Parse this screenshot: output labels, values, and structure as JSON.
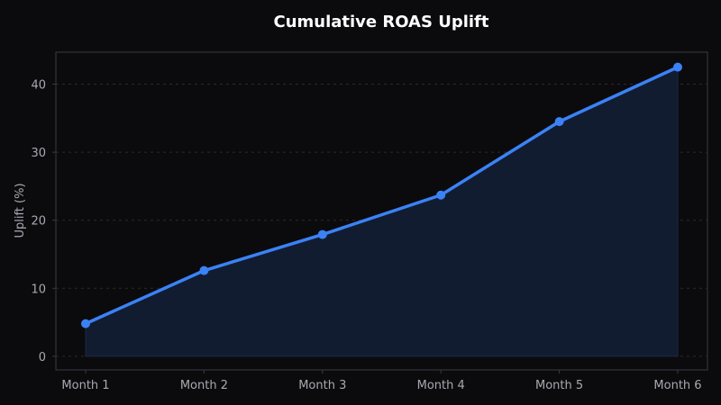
{
  "colors": {
    "background": "#0b0b0d",
    "plot_border": "#3a3a42",
    "grid": "#2a2a31",
    "line": "#3b82f6",
    "area_fill": "#111c31",
    "text": "#a8a8b3",
    "title": "#ffffff"
  },
  "chart_data": {
    "type": "line",
    "title": "Cumulative ROAS Uplift",
    "xlabel": "",
    "ylabel": "Uplift (%)",
    "categories": [
      "Month 1",
      "Month 2",
      "Month 3",
      "Month 4",
      "Month 5",
      "Month 6"
    ],
    "series": [
      {
        "values": [
          4.8,
          12.6,
          17.9,
          23.7,
          34.5,
          42.5
        ]
      }
    ],
    "y_ticks": [
      "0",
      "10",
      "20",
      "30",
      "40"
    ],
    "ylim": [
      -2,
      44.7
    ],
    "grid": true,
    "area_fill": true,
    "markers": true
  }
}
